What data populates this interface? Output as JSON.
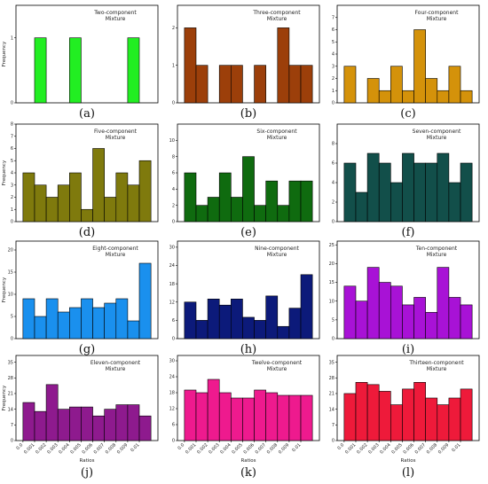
{
  "chart_data": [
    {
      "type": "bar",
      "caption": "(a)",
      "title": [
        "Two-component",
        "Mixture"
      ],
      "color": "#22ee22",
      "ylabel": "Frequency",
      "ylim": [
        0,
        1.5
      ],
      "yticks": [
        0,
        1
      ],
      "values": [
        0,
        1,
        0,
        0,
        1,
        0,
        0,
        0,
        0,
        1,
        0
      ]
    },
    {
      "type": "bar",
      "caption": "(b)",
      "title": [
        "Three-component",
        "Mixture"
      ],
      "color": "#9c3f0a",
      "ylabel": "",
      "ylim": [
        0,
        2.6
      ],
      "yticks": [
        0,
        1,
        2
      ],
      "values": [
        2,
        1,
        0,
        1,
        1,
        0,
        1,
        0,
        2,
        1,
        1
      ]
    },
    {
      "type": "bar",
      "caption": "(c)",
      "title": [
        "Four-component",
        "Mixture"
      ],
      "color": "#d4920a",
      "ylabel": "",
      "ylim": [
        0,
        8
      ],
      "yticks": [
        0,
        1,
        2,
        3,
        4,
        5,
        6,
        7
      ],
      "values": [
        3,
        0,
        2,
        1,
        3,
        1,
        6,
        2,
        1,
        3,
        1
      ]
    },
    {
      "type": "bar",
      "caption": "(d)",
      "title": [
        "Five-component",
        "Mixture"
      ],
      "color": "#7f7a0d",
      "ylabel": "Frequency",
      "ylim": [
        0,
        8
      ],
      "yticks": [
        0,
        1,
        2,
        3,
        4,
        5,
        6,
        7,
        8
      ],
      "values": [
        4,
        3,
        2,
        3,
        4,
        1,
        6,
        2,
        4,
        3,
        5
      ]
    },
    {
      "type": "bar",
      "caption": "(e)",
      "title": [
        "Six-component",
        "Mixture"
      ],
      "color": "#0f6b0f",
      "ylabel": "",
      "ylim": [
        0,
        12
      ],
      "yticks": [
        0,
        2,
        4,
        6,
        8,
        10
      ],
      "values": [
        6,
        2,
        3,
        6,
        3,
        8,
        2,
        5,
        2,
        5,
        5
      ]
    },
    {
      "type": "bar",
      "caption": "(f)",
      "title": [
        "Seven-component",
        "Mixture"
      ],
      "color": "#124f4a",
      "ylabel": "",
      "ylim": [
        0,
        10
      ],
      "yticks": [
        0,
        2,
        4,
        6,
        8
      ],
      "values": [
        6,
        3,
        7,
        6,
        4,
        7,
        6,
        6,
        7,
        4,
        6
      ]
    },
    {
      "type": "bar",
      "caption": "(g)",
      "title": [
        "Eight-component",
        "Mixture"
      ],
      "color": "#1a90ee",
      "ylabel": "Frequency",
      "ylim": [
        0,
        22
      ],
      "yticks": [
        0,
        5,
        10,
        15,
        20
      ],
      "values": [
        9,
        5,
        9,
        6,
        7,
        9,
        7,
        8,
        9,
        4,
        17
      ]
    },
    {
      "type": "bar",
      "caption": "(h)",
      "title": [
        "Nine-component",
        "Mixture"
      ],
      "color": "#0c1a7a",
      "ylabel": "",
      "ylim": [
        0,
        32
      ],
      "yticks": [
        0,
        6,
        12,
        18,
        24,
        30
      ],
      "values": [
        12,
        6,
        13,
        11,
        13,
        7,
        6,
        14,
        4,
        10,
        21
      ]
    },
    {
      "type": "bar",
      "caption": "(i)",
      "title": [
        "Ten-component",
        "Mixture"
      ],
      "color": "#a812d6",
      "ylabel": "",
      "ylim": [
        0,
        26
      ],
      "yticks": [
        0,
        5,
        10,
        15,
        20,
        25
      ],
      "values": [
        14,
        10,
        19,
        15,
        14,
        9,
        11,
        7,
        19,
        11,
        9
      ]
    },
    {
      "type": "bar",
      "caption": "(j)",
      "title": [
        "Eleven-component",
        "Mixture"
      ],
      "color": "#8e1a8e",
      "ylabel": "Frequency",
      "ylim": [
        0,
        38
      ],
      "yticks": [
        0,
        7,
        14,
        21,
        28,
        35
      ],
      "values": [
        17,
        13,
        25,
        14,
        15,
        15,
        11,
        14,
        16,
        16,
        11
      ],
      "xlabel": "Ratios",
      "xticks": [
        "0.0",
        "0.001",
        "0.002",
        "0.003",
        "0.004",
        "0.005",
        "0.006",
        "0.007",
        "0.008",
        "0.009",
        "0.01"
      ]
    },
    {
      "type": "bar",
      "caption": "(k)",
      "title": [
        "Twelve-component",
        "Mixture"
      ],
      "color": "#ee1a8e",
      "ylabel": "",
      "ylim": [
        0,
        32
      ],
      "yticks": [
        0,
        6,
        12,
        18,
        24,
        30
      ],
      "values": [
        19,
        18,
        23,
        18,
        16,
        16,
        19,
        18,
        17,
        17,
        17
      ],
      "xlabel": "Ratios",
      "xticks": [
        "0.0",
        "0.001",
        "0.002",
        "0.003",
        "0.004",
        "0.005",
        "0.006",
        "0.007",
        "0.008",
        "0.009",
        "0.01"
      ]
    },
    {
      "type": "bar",
      "caption": "(l)",
      "title": [
        "Thirteen-component",
        "Mixture"
      ],
      "color": "#ee1a3a",
      "ylabel": "",
      "ylim": [
        0,
        38
      ],
      "yticks": [
        0,
        7,
        14,
        21,
        28,
        35
      ],
      "values": [
        21,
        26,
        25,
        22,
        16,
        23,
        26,
        19,
        16,
        19,
        23
      ],
      "xlabel": "Ratios",
      "xticks": [
        "0.0",
        "0.001",
        "0.002",
        "0.003",
        "0.004",
        "0.005",
        "0.006",
        "0.007",
        "0.008",
        "0.009",
        "0.01"
      ]
    }
  ]
}
